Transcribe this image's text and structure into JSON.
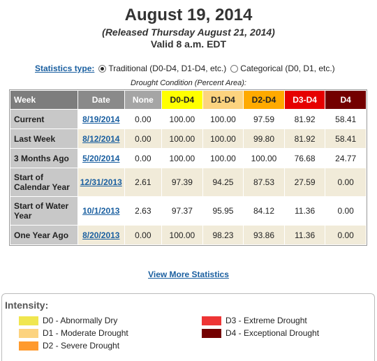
{
  "header": {
    "date": "August 19, 2014",
    "released": "(Released Thursday August 21, 2014)",
    "valid": "Valid 8 a.m. EDT"
  },
  "stats": {
    "label": "Statistics type:",
    "options": [
      {
        "label": "Traditional (D0-D4, D1-D4, etc.)",
        "selected": true
      },
      {
        "label": "Categorical (D0, D1, etc.)",
        "selected": false
      }
    ]
  },
  "condition_label": "Drought Condition (Percent Area):",
  "table": {
    "headers": [
      "Week",
      "Date",
      "None",
      "D0-D4",
      "D1-D4",
      "D2-D4",
      "D3-D4",
      "D4"
    ],
    "rows": [
      {
        "week": "Current",
        "date": "8/19/2014",
        "values": [
          "0.00",
          "100.00",
          "100.00",
          "97.59",
          "81.92",
          "58.41"
        ]
      },
      {
        "week": "Last Week",
        "date": "8/12/2014",
        "values": [
          "0.00",
          "100.00",
          "100.00",
          "99.80",
          "81.92",
          "58.41"
        ]
      },
      {
        "week": "3 Months Ago",
        "date": "5/20/2014",
        "values": [
          "0.00",
          "100.00",
          "100.00",
          "100.00",
          "76.68",
          "24.77"
        ]
      },
      {
        "week": "Start of Calendar Year",
        "date": "12/31/2013",
        "values": [
          "2.61",
          "97.39",
          "94.25",
          "87.53",
          "27.59",
          "0.00"
        ]
      },
      {
        "week": "Start of Water Year",
        "date": "10/1/2013",
        "values": [
          "2.63",
          "97.37",
          "95.95",
          "84.12",
          "11.36",
          "0.00"
        ]
      },
      {
        "week": "One Year Ago",
        "date": "8/20/2013",
        "values": [
          "0.00",
          "100.00",
          "98.23",
          "93.86",
          "11.36",
          "0.00"
        ]
      }
    ]
  },
  "more_link": "View More Statistics",
  "legend": {
    "title": "Intensity:",
    "items": [
      {
        "label": "D0 - Abnormally Dry",
        "color": "#ffff00"
      },
      {
        "label": "D1 - Moderate Drought",
        "color": "#fcd37f"
      },
      {
        "label": "D2 - Severe Drought",
        "color": "#ffaa00"
      },
      {
        "label": "D3 - Extreme Drought",
        "color": "#e60000"
      },
      {
        "label": "D4 - Exceptional Drought",
        "color": "#730000"
      }
    ]
  }
}
